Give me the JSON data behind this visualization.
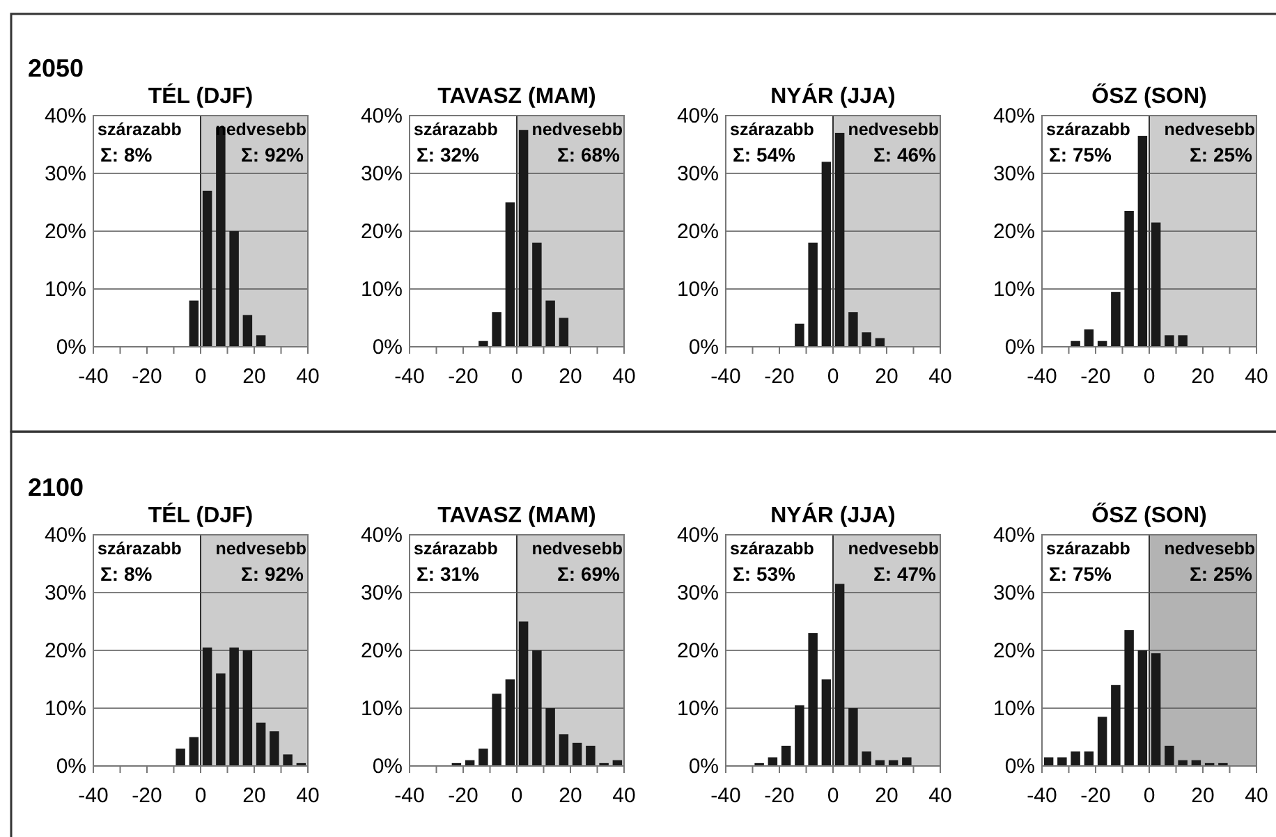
{
  "chart_data": [
    {
      "type": "histogram",
      "title": "TÉL (DJF)",
      "bins": [
        -40,
        -35,
        -30,
        -25,
        -20,
        -15,
        -10,
        -5,
        0,
        5,
        10,
        15,
        20,
        25,
        30,
        35,
        40
      ],
      "values": [
        0,
        0,
        0,
        0,
        0,
        0,
        0,
        8,
        27,
        38,
        20,
        5.5,
        2,
        0,
        0,
        0
      ],
      "color": "#1a1a1a",
      "xlim": [
        -40,
        40
      ],
      "xticks": [
        -40,
        {
          "value": -30,
          "label": null
        },
        -20,
        {
          "value": -10,
          "label": null
        },
        0,
        {
          "value": 10,
          "label": null
        },
        20,
        {
          "value": 30,
          "label": null
        },
        40
      ],
      "ylim": [
        0,
        40
      ],
      "yticks": [
        {
          "value": 0,
          "label": "0%"
        },
        {
          "value": 10,
          "label": "10%"
        },
        {
          "value": 20,
          "label": "20%"
        },
        {
          "value": 30,
          "label": "30%"
        },
        {
          "value": 40,
          "label": "40%"
        }
      ],
      "grid": "y",
      "bands": [
        {
          "axis": "x",
          "from": 0,
          "to": 40,
          "color": "#cccccc"
        }
      ],
      "annotations": [
        "szárazabb",
        "Σ: 8%",
        "nedvesebb",
        "Σ: 92%",
        "2050"
      ]
    },
    {
      "type": "histogram",
      "title": "TAVASZ (MAM)",
      "bins": [
        -40,
        -35,
        -30,
        -25,
        -20,
        -15,
        -10,
        -5,
        0,
        5,
        10,
        15,
        20,
        25,
        30,
        35,
        40
      ],
      "values": [
        0,
        0,
        0,
        0,
        0,
        1,
        6,
        25,
        37.5,
        18,
        8,
        5,
        0,
        0,
        0,
        0
      ],
      "color": "#1a1a1a",
      "xlim": [
        -40,
        40
      ],
      "xticks": [
        -40,
        {
          "value": -30,
          "label": null
        },
        -20,
        {
          "value": -10,
          "label": null
        },
        0,
        {
          "value": 10,
          "label": null
        },
        20,
        {
          "value": 30,
          "label": null
        },
        40
      ],
      "ylim": [
        0,
        40
      ],
      "yticks": [
        {
          "value": 0,
          "label": "0%"
        },
        {
          "value": 10,
          "label": "10%"
        },
        {
          "value": 20,
          "label": "20%"
        },
        {
          "value": 30,
          "label": "30%"
        },
        {
          "value": 40,
          "label": "40%"
        }
      ],
      "grid": "y",
      "bands": [
        {
          "axis": "x",
          "from": 0,
          "to": 40,
          "color": "#cccccc"
        }
      ],
      "annotations": [
        "szárazabb",
        "Σ: 32%",
        "nedvesebb",
        "Σ: 68%"
      ]
    },
    {
      "type": "histogram",
      "title": "NYÁR (JJA)",
      "bins": [
        -40,
        -35,
        -30,
        -25,
        -20,
        -15,
        -10,
        -5,
        0,
        5,
        10,
        15,
        20,
        25,
        30,
        35,
        40
      ],
      "values": [
        0,
        0,
        0,
        0,
        0,
        4,
        18,
        32,
        37,
        6,
        2.5,
        1.5,
        0,
        0,
        0,
        0
      ],
      "color": "#1a1a1a",
      "xlim": [
        -40,
        40
      ],
      "xticks": [
        -40,
        {
          "value": -30,
          "label": null
        },
        -20,
        {
          "value": -10,
          "label": null
        },
        0,
        {
          "value": 10,
          "label": null
        },
        20,
        {
          "value": 30,
          "label": null
        },
        40
      ],
      "ylim": [
        0,
        40
      ],
      "yticks": [
        {
          "value": 0,
          "label": "0%"
        },
        {
          "value": 10,
          "label": "10%"
        },
        {
          "value": 20,
          "label": "20%"
        },
        {
          "value": 30,
          "label": "30%"
        },
        {
          "value": 40,
          "label": "40%"
        }
      ],
      "grid": "y",
      "bands": [
        {
          "axis": "x",
          "from": 0,
          "to": 40,
          "color": "#cccccc"
        }
      ],
      "annotations": [
        "szárazabb",
        "Σ: 54%",
        "nedvesebb",
        "Σ: 46%"
      ]
    },
    {
      "type": "histogram",
      "title": "ŐSZ (SON)",
      "bins": [
        -40,
        -35,
        -30,
        -25,
        -20,
        -15,
        -10,
        -5,
        0,
        5,
        10,
        15,
        20,
        25,
        30,
        35,
        40
      ],
      "values": [
        0,
        0,
        1,
        3,
        1,
        9.5,
        23.5,
        36.5,
        21.5,
        2,
        2,
        0,
        0,
        0,
        0,
        0
      ],
      "color": "#1a1a1a",
      "xlim": [
        -40,
        40
      ],
      "xticks": [
        -40,
        {
          "value": -30,
          "label": null
        },
        -20,
        {
          "value": -10,
          "label": null
        },
        0,
        {
          "value": 10,
          "label": null
        },
        20,
        {
          "value": 30,
          "label": null
        },
        40
      ],
      "ylim": [
        0,
        40
      ],
      "yticks": [
        {
          "value": 0,
          "label": "0%"
        },
        {
          "value": 10,
          "label": "10%"
        },
        {
          "value": 20,
          "label": "20%"
        },
        {
          "value": 30,
          "label": "30%"
        },
        {
          "value": 40,
          "label": "40%"
        }
      ],
      "grid": "y",
      "bands": [
        {
          "axis": "x",
          "from": 0,
          "to": 40,
          "color": "#cccccc"
        }
      ],
      "annotations": [
        "szárazabb",
        "Σ: 75%",
        "nedvesebb",
        "Σ: 25%"
      ]
    },
    {
      "type": "histogram",
      "title": "TÉL (DJF)",
      "bins": [
        -40,
        -35,
        -30,
        -25,
        -20,
        -15,
        -10,
        -5,
        0,
        5,
        10,
        15,
        20,
        25,
        30,
        35,
        40
      ],
      "values": [
        0,
        0,
        0,
        0,
        0,
        0,
        3,
        5,
        20.5,
        16,
        20.5,
        20,
        7.5,
        6,
        2,
        0.5
      ],
      "color": "#1a1a1a",
      "xlim": [
        -40,
        40
      ],
      "xticks": [
        -40,
        {
          "value": -30,
          "label": null
        },
        -20,
        {
          "value": -10,
          "label": null
        },
        0,
        {
          "value": 10,
          "label": null
        },
        20,
        {
          "value": 30,
          "label": null
        },
        40
      ],
      "ylim": [
        0,
        40
      ],
      "yticks": [
        {
          "value": 0,
          "label": "0%"
        },
        {
          "value": 10,
          "label": "10%"
        },
        {
          "value": 20,
          "label": "20%"
        },
        {
          "value": 30,
          "label": "30%"
        },
        {
          "value": 40,
          "label": "40%"
        }
      ],
      "grid": "y",
      "bands": [
        {
          "axis": "x",
          "from": 0,
          "to": 40,
          "color": "#cccccc"
        }
      ],
      "annotations": [
        "szárazabb",
        "Σ: 8%",
        "nedvesebb",
        "Σ: 92%",
        "2100"
      ]
    },
    {
      "type": "histogram",
      "title": "TAVASZ (MAM)",
      "bins": [
        -40,
        -35,
        -30,
        -25,
        -20,
        -15,
        -10,
        -5,
        0,
        5,
        10,
        15,
        20,
        25,
        30,
        35,
        40
      ],
      "values": [
        0,
        0,
        0,
        0.5,
        1,
        3,
        12.5,
        15,
        25,
        20,
        10,
        5.5,
        4,
        3.5,
        0.5,
        1
      ],
      "color": "#1a1a1a",
      "xlim": [
        -40,
        40
      ],
      "xticks": [
        -40,
        {
          "value": -30,
          "label": null
        },
        -20,
        {
          "value": -10,
          "label": null
        },
        0,
        {
          "value": 10,
          "label": null
        },
        20,
        {
          "value": 30,
          "label": null
        },
        40
      ],
      "ylim": [
        0,
        40
      ],
      "yticks": [
        {
          "value": 0,
          "label": "0%"
        },
        {
          "value": 10,
          "label": "10%"
        },
        {
          "value": 20,
          "label": "20%"
        },
        {
          "value": 30,
          "label": "30%"
        },
        {
          "value": 40,
          "label": "40%"
        }
      ],
      "grid": "y",
      "bands": [
        {
          "axis": "x",
          "from": 0,
          "to": 40,
          "color": "#cccccc"
        }
      ],
      "annotations": [
        "szárazabb",
        "Σ: 31%",
        "nedvesebb",
        "Σ: 69%"
      ]
    },
    {
      "type": "histogram",
      "title": "NYÁR (JJA)",
      "bins": [
        -40,
        -35,
        -30,
        -25,
        -20,
        -15,
        -10,
        -5,
        0,
        5,
        10,
        15,
        20,
        25,
        30,
        35,
        40
      ],
      "values": [
        0,
        0,
        0.5,
        1.5,
        3.5,
        10.5,
        23,
        15,
        31.5,
        10,
        2.5,
        1,
        1,
        1.5,
        0,
        0
      ],
      "color": "#1a1a1a",
      "xlim": [
        -40,
        40
      ],
      "xticks": [
        -40,
        {
          "value": -30,
          "label": null
        },
        -20,
        {
          "value": -10,
          "label": null
        },
        0,
        {
          "value": 10,
          "label": null
        },
        20,
        {
          "value": 30,
          "label": null
        },
        40
      ],
      "ylim": [
        0,
        40
      ],
      "yticks": [
        {
          "value": 0,
          "label": "0%"
        },
        {
          "value": 10,
          "label": "10%"
        },
        {
          "value": 20,
          "label": "20%"
        },
        {
          "value": 30,
          "label": "30%"
        },
        {
          "value": 40,
          "label": "40%"
        }
      ],
      "grid": "y",
      "bands": [
        {
          "axis": "x",
          "from": 0,
          "to": 40,
          "color": "#cccccc"
        }
      ],
      "annotations": [
        "szárazabb",
        "Σ: 53%",
        "nedvesebb",
        "Σ: 47%"
      ]
    },
    {
      "type": "histogram",
      "title": "ŐSZ (SON)",
      "bins": [
        -40,
        -35,
        -30,
        -25,
        -20,
        -15,
        -10,
        -5,
        0,
        5,
        10,
        15,
        20,
        25,
        30,
        35,
        40
      ],
      "values": [
        1.5,
        1.5,
        2.5,
        2.5,
        8.5,
        14,
        23.5,
        20,
        19.5,
        3.5,
        1,
        1,
        0.5,
        0.5,
        0,
        0
      ],
      "color": "#1a1a1a",
      "xlim": [
        -40,
        40
      ],
      "xticks": [
        -40,
        {
          "value": -30,
          "label": null
        },
        -20,
        {
          "value": -10,
          "label": null
        },
        0,
        {
          "value": 10,
          "label": null
        },
        20,
        {
          "value": 30,
          "label": null
        },
        40
      ],
      "ylim": [
        0,
        40
      ],
      "yticks": [
        {
          "value": 0,
          "label": "0%"
        },
        {
          "value": 10,
          "label": "10%"
        },
        {
          "value": 20,
          "label": "20%"
        },
        {
          "value": 30,
          "label": "30%"
        },
        {
          "value": 40,
          "label": "40%"
        }
      ],
      "grid": "y",
      "bands": [
        {
          "axis": "x",
          "from": 0,
          "to": 40,
          "color": "#b3b3b3"
        }
      ],
      "annotations": [
        "szárazabb",
        "Σ: 75%",
        "nedvesebb",
        "Σ: 25%"
      ]
    }
  ]
}
